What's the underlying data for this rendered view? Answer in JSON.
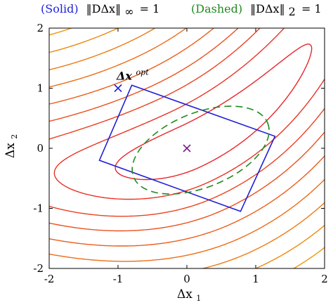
{
  "chart_data": {
    "type": "contour",
    "title": "",
    "xlabel": "Δx",
    "xlabel_sub": "1",
    "ylabel": "Δx",
    "ylabel_sub": "2",
    "xlim": [
      -2,
      2
    ],
    "ylim": [
      -2,
      2
    ],
    "x_ticks": [
      "-2",
      "-1",
      "0",
      "1",
      "2"
    ],
    "y_ticks": [
      "2",
      "1",
      "0",
      "-1",
      "-2"
    ],
    "grid": false,
    "legend": {
      "solid_label": "(Solid)",
      "solid_norm": "‖DΔx‖",
      "solid_sub": "∞",
      "solid_eq": "= 1",
      "dashed_label": "(Dashed)",
      "dashed_norm": "‖DΔx‖",
      "dashed_sub": "2",
      "dashed_eq": "= 1"
    },
    "annotation": {
      "text": "Δx",
      "sup": "opt",
      "x": -1.0,
      "y": 1.0
    },
    "origin_marker": {
      "x": 0,
      "y": 0
    },
    "solid_box": [
      [
        -0.8,
        1.05
      ],
      [
        1.28,
        0.2
      ],
      [
        0.78,
        -1.05
      ],
      [
        -1.27,
        -0.2
      ]
    ],
    "dashed_ellipse": {
      "cx": 0.2,
      "cy": -0.03,
      "rx": 1.05,
      "ry": 0.62,
      "angle_deg": -22
    },
    "contour_levels": [
      0.8,
      2.5,
      5,
      8,
      12,
      17,
      23,
      30,
      38,
      47,
      57,
      68
    ],
    "colors": {
      "box": "#1f1fd6",
      "ellipse": "#1f8a1f",
      "marker": "#1f1fd6",
      "contour_low": "#e8252a",
      "contour_high": "#f2c200"
    }
  }
}
